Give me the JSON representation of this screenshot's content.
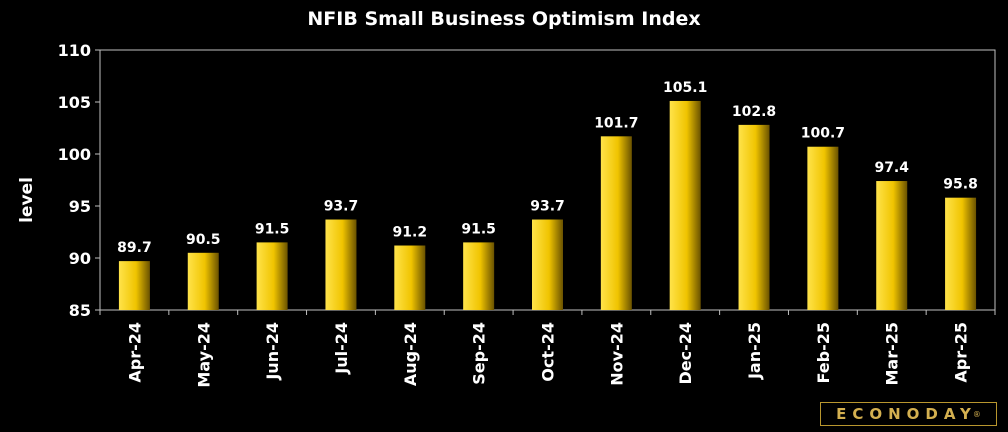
{
  "chart_data": {
    "type": "bar",
    "title": "NFIB Small Business Optimism Index",
    "xlabel": "",
    "ylabel": "level",
    "ylim": [
      85,
      110
    ],
    "yticks": [
      85,
      90,
      95,
      100,
      105,
      110
    ],
    "categories": [
      "Apr-24",
      "May-24",
      "Jun-24",
      "Jul-24",
      "Aug-24",
      "Sep-24",
      "Oct-24",
      "Nov-24",
      "Dec-24",
      "Jan-25",
      "Feb-25",
      "Mar-25",
      "Apr-25"
    ],
    "values": [
      89.7,
      90.5,
      91.5,
      93.7,
      91.2,
      91.5,
      93.7,
      101.7,
      105.1,
      102.8,
      100.7,
      97.4,
      95.8
    ],
    "value_labels": [
      "89.7",
      "90.5",
      "91.5",
      "93.7",
      "91.2",
      "91.5",
      "93.7",
      "101.7",
      "105.1",
      "102.8",
      "100.7",
      "97.4",
      "95.8"
    ],
    "grid": false
  },
  "colors": {
    "background": "#000000",
    "plot_background": "#000000",
    "bar_light": "#ffe34a",
    "bar_mid": "#f0c400",
    "bar_dark": "#6a5200",
    "axis": "#bfbfbf",
    "text": "#ffffff"
  },
  "branding": {
    "logo_text": "ECONODAY",
    "logo_mark": "®"
  }
}
